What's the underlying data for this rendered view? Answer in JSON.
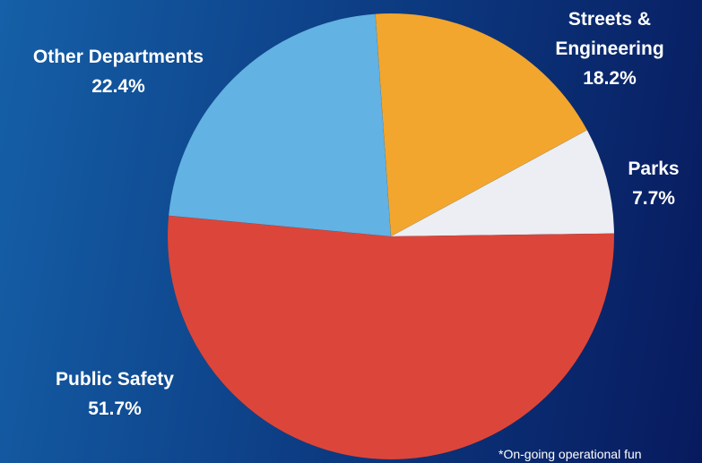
{
  "chart_data": {
    "type": "pie",
    "title": "",
    "slices": [
      {
        "label_lines": [
          "Streets &",
          "Engineering"
        ],
        "label": "Streets & Engineering",
        "value": 18.2,
        "value_label": "18.2%",
        "color": "#f2a62e"
      },
      {
        "label_lines": [
          "Parks"
        ],
        "label": "Parks",
        "value": 7.7,
        "value_label": "7.7%",
        "color": "#eceef3"
      },
      {
        "label_lines": [
          "Public Safety"
        ],
        "label": "Public Safety",
        "value": 51.7,
        "value_label": "51.7%",
        "color": "#dc463a"
      },
      {
        "label_lines": [
          "Other Departments"
        ],
        "label": "Other Departments",
        "value": 22.4,
        "value_label": "22.4%",
        "color": "#62b2e3"
      }
    ],
    "legend": "none"
  },
  "footnote": "*On-going operational fun"
}
